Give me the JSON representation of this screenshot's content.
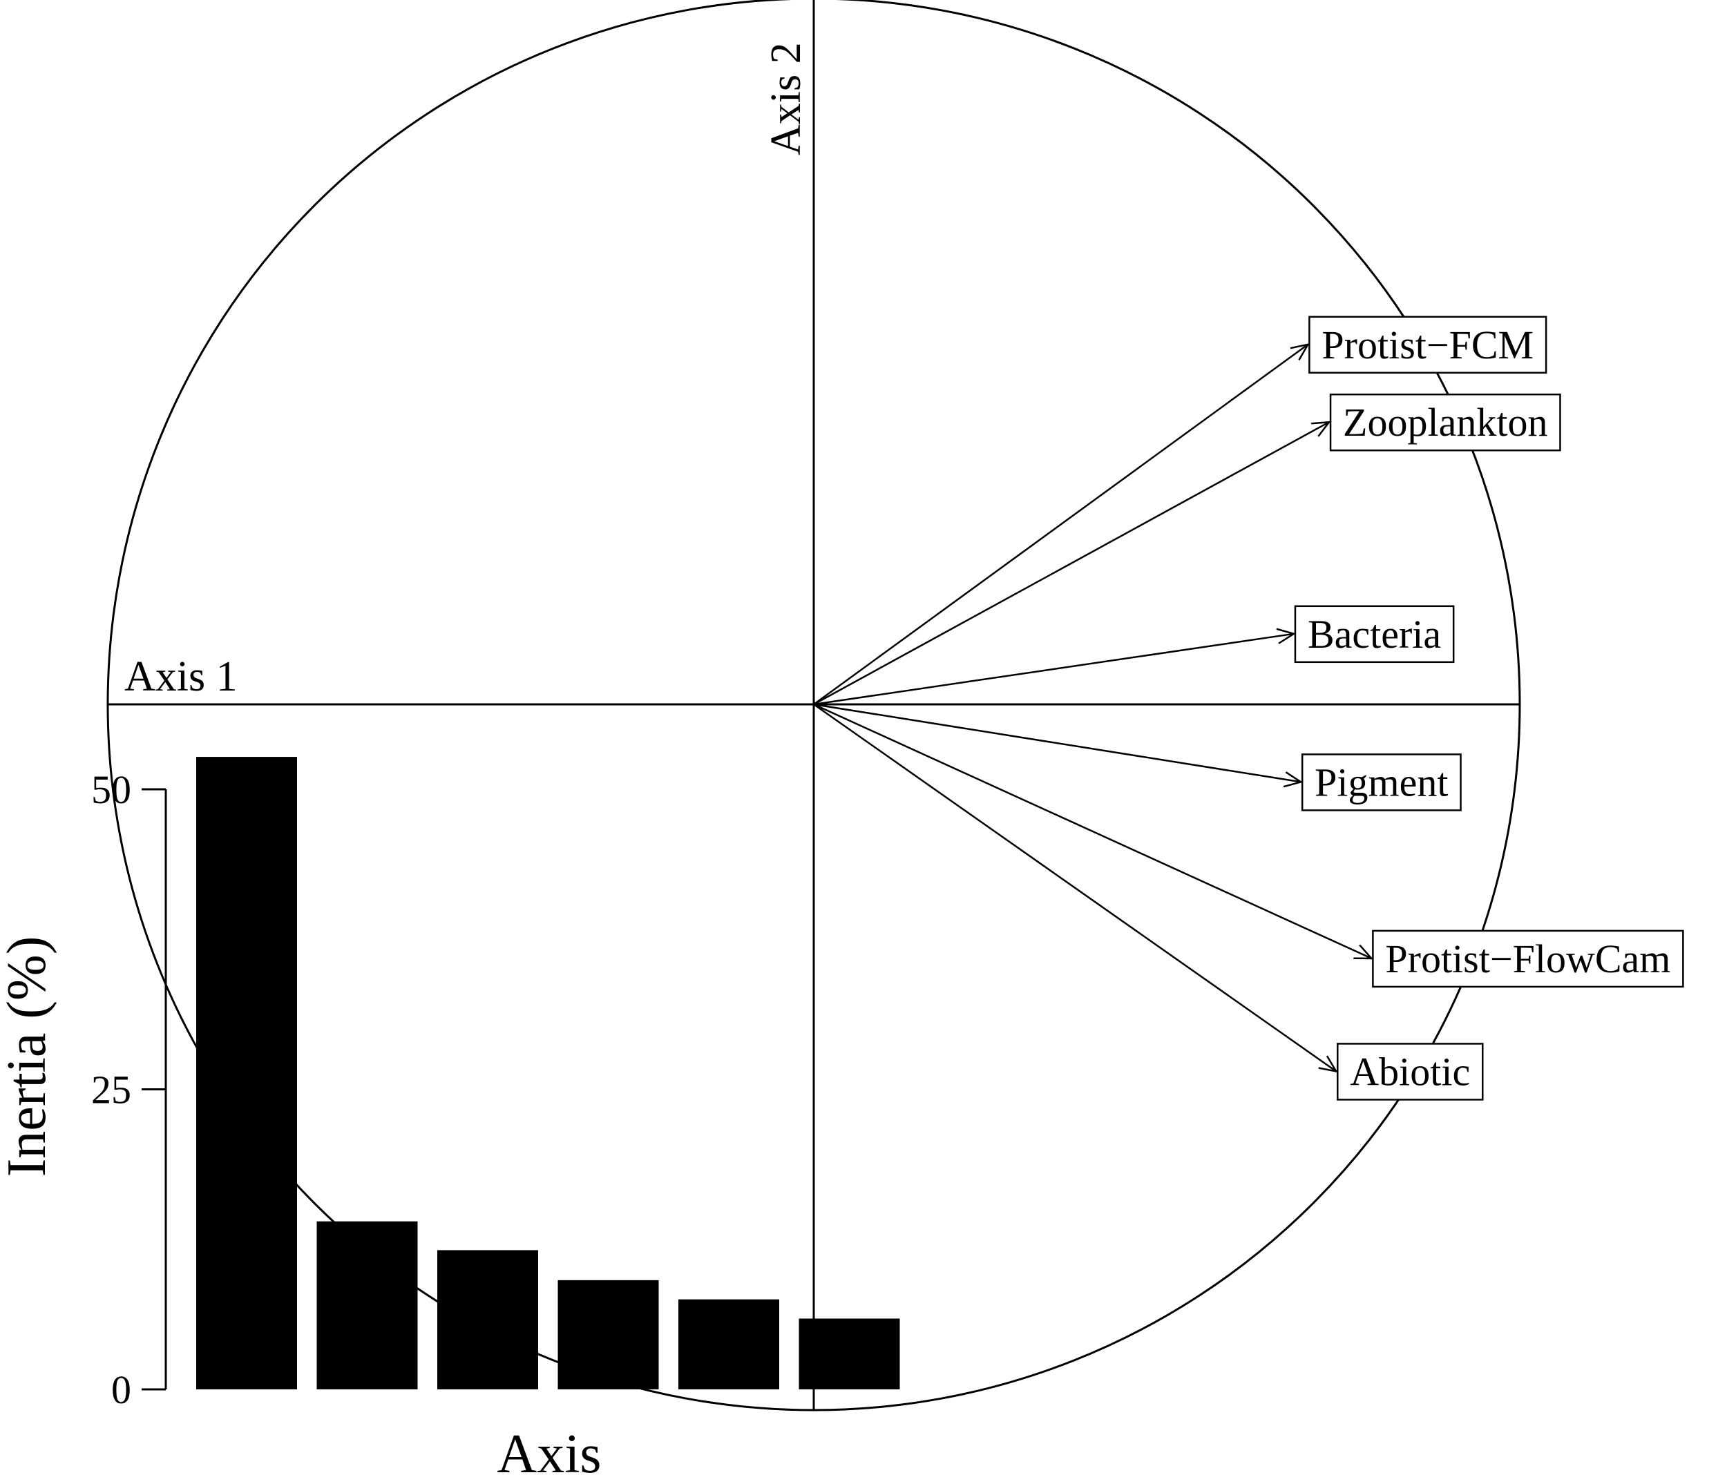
{
  "chart_data": [
    {
      "type": "scatter",
      "subtype": "correlation-circle",
      "axes": {
        "x_label": "Axis 1",
        "y_label": "Axis 2",
        "range": [
          -1,
          1
        ]
      },
      "variables": [
        {
          "name": "Protist−FCM",
          "x": 0.7,
          "y": 0.51
        },
        {
          "name": "Zooplankton",
          "x": 0.73,
          "y": 0.4
        },
        {
          "name": "Bacteria",
          "x": 0.68,
          "y": 0.1
        },
        {
          "name": "Pigment",
          "x": 0.69,
          "y": -0.11
        },
        {
          "name": "Protist−FlowCam",
          "x": 0.79,
          "y": -0.36
        },
        {
          "name": "Abiotic",
          "x": 0.74,
          "y": -0.52
        }
      ]
    },
    {
      "type": "bar",
      "title": "",
      "xlabel": "Axis",
      "ylabel": "Inertia (%)",
      "ylim": [
        0,
        50
      ],
      "yticks": [
        "0",
        "25",
        "50"
      ],
      "values": [
        52.7,
        14.0,
        11.6,
        9.1,
        7.5,
        5.9
      ]
    }
  ]
}
